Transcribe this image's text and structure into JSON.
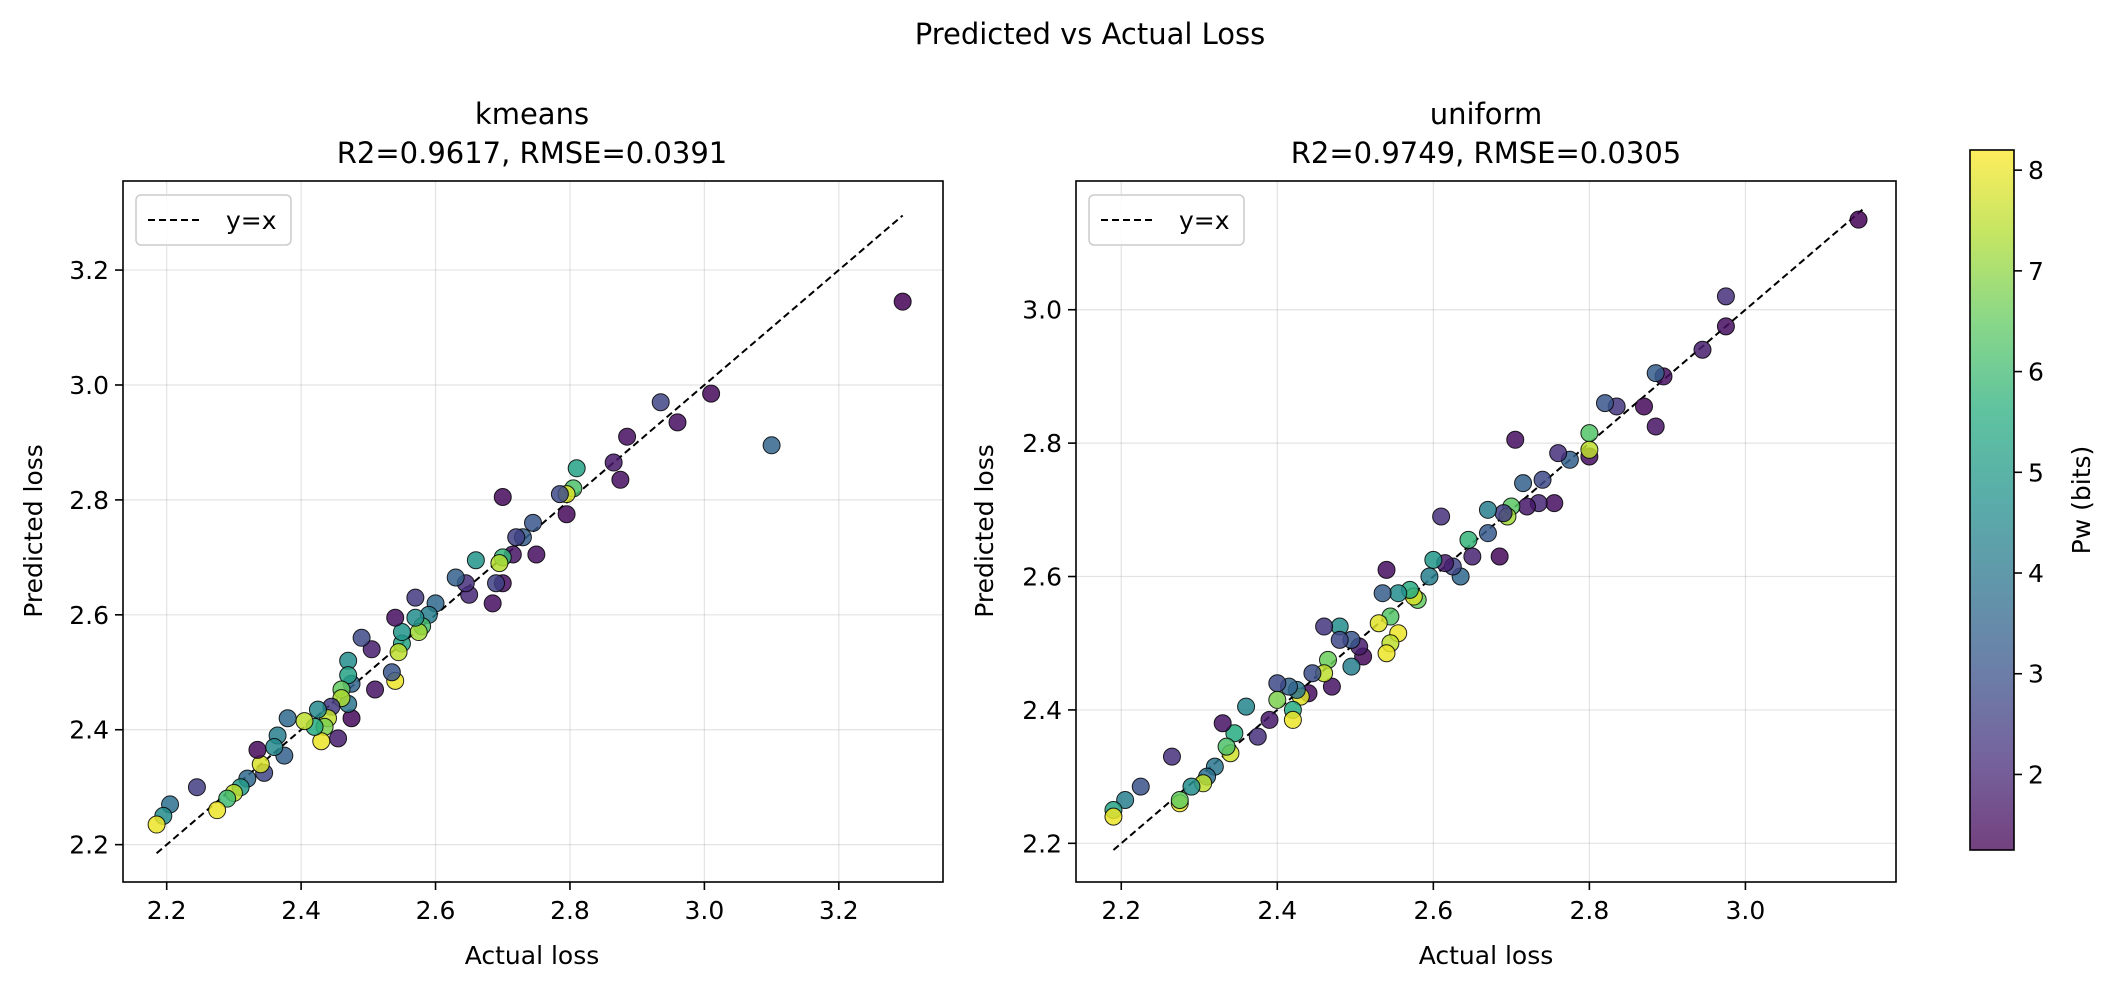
{
  "suptitle": "Predicted vs Actual Loss",
  "chart_data": [
    {
      "type": "scatter",
      "title_line1": "kmeans",
      "title_line2": "R2=0.9617, RMSE=0.0391",
      "xlabel": "Actual loss",
      "ylabel": "Predicted loss",
      "xlim": [
        2.135,
        3.355
      ],
      "ylim": [
        2.135,
        3.355
      ],
      "xticks": [
        "2.2",
        "2.4",
        "2.6",
        "2.8",
        "3.0",
        "3.2"
      ],
      "yticks": [
        "2.2",
        "2.4",
        "2.6",
        "2.8",
        "3.0",
        "3.2"
      ],
      "grid": true,
      "legend": {
        "position": "upper-left",
        "label": "y=x"
      },
      "identity_line": [
        2.185,
        3.295
      ],
      "points": [
        [
          3.295,
          3.145,
          1.3
        ],
        [
          3.1,
          2.895,
          3.5
        ],
        [
          3.01,
          2.985,
          1.4
        ],
        [
          2.96,
          2.935,
          1.5
        ],
        [
          2.935,
          2.97,
          2.7
        ],
        [
          2.885,
          2.91,
          1.5
        ],
        [
          2.875,
          2.835,
          1.5
        ],
        [
          2.865,
          2.865,
          1.7
        ],
        [
          2.81,
          2.855,
          5.2
        ],
        [
          2.805,
          2.82,
          6.2
        ],
        [
          2.795,
          2.775,
          1.4
        ],
        [
          2.795,
          2.81,
          7.8
        ],
        [
          2.785,
          2.81,
          2.8
        ],
        [
          2.75,
          2.705,
          1.5
        ],
        [
          2.745,
          2.76,
          3.1
        ],
        [
          2.73,
          2.735,
          3.3
        ],
        [
          2.72,
          2.735,
          2.6
        ],
        [
          2.715,
          2.705,
          1.6
        ],
        [
          2.7,
          2.805,
          1.4
        ],
        [
          2.7,
          2.655,
          1.5
        ],
        [
          2.7,
          2.7,
          5.8
        ],
        [
          2.695,
          2.69,
          7.4
        ],
        [
          2.69,
          2.655,
          2.6
        ],
        [
          2.685,
          2.62,
          1.5
        ],
        [
          2.66,
          2.695,
          4.8
        ],
        [
          2.65,
          2.635,
          2.0
        ],
        [
          2.645,
          2.655,
          2.2
        ],
        [
          2.63,
          2.665,
          3.4
        ],
        [
          2.6,
          2.62,
          3.6
        ],
        [
          2.59,
          2.6,
          4.2
        ],
        [
          2.58,
          2.58,
          6.1
        ],
        [
          2.575,
          2.57,
          7.2
        ],
        [
          2.57,
          2.595,
          4.6
        ],
        [
          2.57,
          2.63,
          2.4
        ],
        [
          2.55,
          2.55,
          5.3
        ],
        [
          2.55,
          2.57,
          4.8
        ],
        [
          2.545,
          2.535,
          7.5
        ],
        [
          2.54,
          2.485,
          8.0
        ],
        [
          2.54,
          2.595,
          1.5
        ],
        [
          2.535,
          2.5,
          3.1
        ],
        [
          2.51,
          2.47,
          1.6
        ],
        [
          2.505,
          2.54,
          1.8
        ],
        [
          2.49,
          2.56,
          2.8
        ],
        [
          2.475,
          2.48,
          3.5
        ],
        [
          2.475,
          2.42,
          1.4
        ],
        [
          2.47,
          2.52,
          4.6
        ],
        [
          2.47,
          2.445,
          3.9
        ],
        [
          2.47,
          2.495,
          5.2
        ],
        [
          2.46,
          2.47,
          6.5
        ],
        [
          2.46,
          2.455,
          7.3
        ],
        [
          2.455,
          2.385,
          1.8
        ],
        [
          2.445,
          2.44,
          2.4
        ],
        [
          2.44,
          2.42,
          7.5
        ],
        [
          2.435,
          2.405,
          6.8
        ],
        [
          2.43,
          2.38,
          8.0
        ],
        [
          2.425,
          2.435,
          4.5
        ],
        [
          2.42,
          2.405,
          5.5
        ],
        [
          2.405,
          2.415,
          7.5
        ],
        [
          2.38,
          2.42,
          3.6
        ],
        [
          2.375,
          2.355,
          3.4
        ],
        [
          2.365,
          2.39,
          4.2
        ],
        [
          2.36,
          2.37,
          4.5
        ],
        [
          2.345,
          2.325,
          2.7
        ],
        [
          2.34,
          2.34,
          7.8
        ],
        [
          2.335,
          2.365,
          1.4
        ],
        [
          2.32,
          2.315,
          3.6
        ],
        [
          2.31,
          2.3,
          5.0
        ],
        [
          2.3,
          2.29,
          7.5
        ],
        [
          2.29,
          2.28,
          6.0
        ],
        [
          2.275,
          2.26,
          8.0
        ],
        [
          2.245,
          2.3,
          2.5
        ],
        [
          2.205,
          2.27,
          3.8
        ],
        [
          2.195,
          2.25,
          4.6
        ],
        [
          2.185,
          2.235,
          8.0
        ]
      ]
    },
    {
      "type": "scatter",
      "title_line1": "uniform",
      "title_line2": "R2=0.9749, RMSE=0.0305",
      "xlabel": "Actual loss",
      "ylabel": "Predicted loss",
      "xlim": [
        2.142,
        3.193
      ],
      "ylim": [
        2.142,
        3.193
      ],
      "xticks": [
        "2.2",
        "2.4",
        "2.6",
        "2.8",
        "3.0"
      ],
      "yticks": [
        "2.2",
        "2.4",
        "2.6",
        "2.8",
        "3.0"
      ],
      "grid": true,
      "legend": {
        "position": "upper-left",
        "label": "y=x"
      },
      "identity_line": [
        2.19,
        3.15
      ],
      "points": [
        [
          3.145,
          3.135,
          1.3
        ],
        [
          2.975,
          2.975,
          1.5
        ],
        [
          2.975,
          3.02,
          2.2
        ],
        [
          2.945,
          2.94,
          1.8
        ],
        [
          2.895,
          2.9,
          1.5
        ],
        [
          2.885,
          2.905,
          3.3
        ],
        [
          2.885,
          2.825,
          1.6
        ],
        [
          2.87,
          2.855,
          1.4
        ],
        [
          2.835,
          2.855,
          2.3
        ],
        [
          2.82,
          2.86,
          3.1
        ],
        [
          2.8,
          2.78,
          1.5
        ],
        [
          2.8,
          2.815,
          6.3
        ],
        [
          2.8,
          2.79,
          7.5
        ],
        [
          2.775,
          2.775,
          3.4
        ],
        [
          2.76,
          2.785,
          2.2
        ],
        [
          2.755,
          2.71,
          1.5
        ],
        [
          2.74,
          2.745,
          2.8
        ],
        [
          2.735,
          2.71,
          2.0
        ],
        [
          2.72,
          2.705,
          1.7
        ],
        [
          2.715,
          2.74,
          3.4
        ],
        [
          2.705,
          2.805,
          1.5
        ],
        [
          2.7,
          2.705,
          6.4
        ],
        [
          2.695,
          2.69,
          7.2
        ],
        [
          2.69,
          2.695,
          2.5
        ],
        [
          2.685,
          2.63,
          1.4
        ],
        [
          2.67,
          2.7,
          4.2
        ],
        [
          2.67,
          2.665,
          3.2
        ],
        [
          2.65,
          2.63,
          1.9
        ],
        [
          2.645,
          2.655,
          5.8
        ],
        [
          2.635,
          2.6,
          3.6
        ],
        [
          2.625,
          2.615,
          2.7
        ],
        [
          2.615,
          2.62,
          1.8
        ],
        [
          2.61,
          2.69,
          2.2
        ],
        [
          2.6,
          2.625,
          4.9
        ],
        [
          2.595,
          2.6,
          4.2
        ],
        [
          2.58,
          2.565,
          6.5
        ],
        [
          2.575,
          2.57,
          7.8
        ],
        [
          2.57,
          2.58,
          5.5
        ],
        [
          2.555,
          2.575,
          4.6
        ],
        [
          2.555,
          2.515,
          8.0
        ],
        [
          2.545,
          2.5,
          7.5
        ],
        [
          2.545,
          2.54,
          6.3
        ],
        [
          2.54,
          2.485,
          8.0
        ],
        [
          2.54,
          2.61,
          1.5
        ],
        [
          2.535,
          2.575,
          3.3
        ],
        [
          2.53,
          2.53,
          7.9
        ],
        [
          2.51,
          2.48,
          1.4
        ],
        [
          2.505,
          2.495,
          1.8
        ],
        [
          2.495,
          2.465,
          4.2
        ],
        [
          2.495,
          2.505,
          3.1
        ],
        [
          2.48,
          2.525,
          4.6
        ],
        [
          2.48,
          2.505,
          2.8
        ],
        [
          2.47,
          2.435,
          1.6
        ],
        [
          2.465,
          2.475,
          6.6
        ],
        [
          2.46,
          2.455,
          7.5
        ],
        [
          2.46,
          2.525,
          2.3
        ],
        [
          2.445,
          2.455,
          2.9
        ],
        [
          2.44,
          2.425,
          1.5
        ],
        [
          2.43,
          2.42,
          7.9
        ],
        [
          2.425,
          2.43,
          3.9
        ],
        [
          2.42,
          2.4,
          5.5
        ],
        [
          2.42,
          2.385,
          8.0
        ],
        [
          2.415,
          2.435,
          3.5
        ],
        [
          2.4,
          2.44,
          2.8
        ],
        [
          2.4,
          2.415,
          6.8
        ],
        [
          2.39,
          2.385,
          1.7
        ],
        [
          2.375,
          2.36,
          2.2
        ],
        [
          2.36,
          2.405,
          4.4
        ],
        [
          2.345,
          2.365,
          5.5
        ],
        [
          2.34,
          2.335,
          7.7
        ],
        [
          2.335,
          2.345,
          6.2
        ],
        [
          2.33,
          2.38,
          1.6
        ],
        [
          2.32,
          2.315,
          4.0
        ],
        [
          2.31,
          2.3,
          3.8
        ],
        [
          2.305,
          2.29,
          7.5
        ],
        [
          2.29,
          2.285,
          4.6
        ],
        [
          2.275,
          2.26,
          8.0
        ],
        [
          2.275,
          2.265,
          6.5
        ],
        [
          2.265,
          2.33,
          2.2
        ],
        [
          2.225,
          2.285,
          3.0
        ],
        [
          2.205,
          2.265,
          4.2
        ],
        [
          2.19,
          2.25,
          5.2
        ],
        [
          2.19,
          2.24,
          8.0
        ]
      ]
    }
  ],
  "colorbar": {
    "label": "Pw (bits)",
    "min": 1.25,
    "max": 8.2,
    "ticks": [
      "2",
      "3",
      "4",
      "5",
      "6",
      "7",
      "8"
    ]
  }
}
